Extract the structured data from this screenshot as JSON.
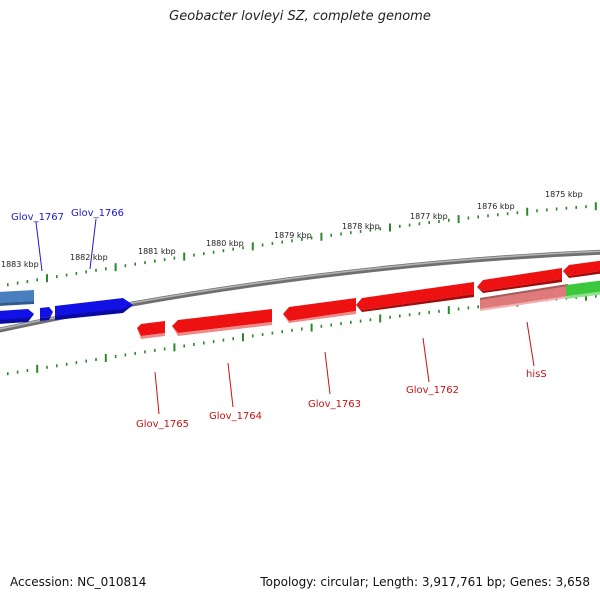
{
  "title": "Geobacter lovleyi SZ, complete genome",
  "footer": {
    "accession": "Accession: NC_010814",
    "summary": "Topology: circular; Length: 3,917,761 bp; Genes: 3,658"
  },
  "ruler_labels": [
    "1883 kbp",
    "1882 kbp",
    "1881 kbp",
    "1880 kbp",
    "1879 kbp",
    "1878 kbp",
    "1877 kbp",
    "1876 kbp",
    "1875 kbp"
  ],
  "gene_labels": {
    "glov_1767": "Glov_1767",
    "glov_1766": "Glov_1766",
    "glov_1765": "Glov_1765",
    "glov_1764": "Glov_1764",
    "glov_1763": "Glov_1763",
    "glov_1762": "Glov_1762",
    "hisS": "hisS"
  },
  "colors": {
    "backbone": "#7a7a7a",
    "forward_gene": "#1010e6",
    "forward_gene_pale": "#4a7fbf",
    "reverse_gene": "#ee1111",
    "reverse_gene_pale": "#e07a7a",
    "other_gene": "#3cc83c",
    "tick": "#2a8a2a",
    "forward_label": "#1a1acc",
    "reverse_label": "#cc1111"
  }
}
